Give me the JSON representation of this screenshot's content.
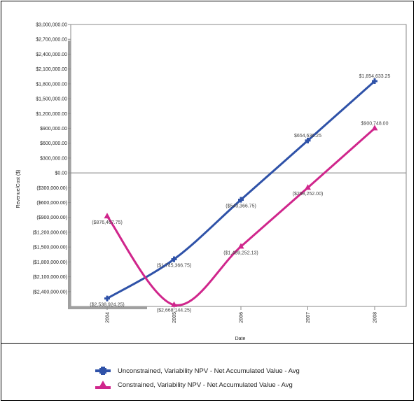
{
  "chart_data": {
    "type": "line",
    "title": "",
    "xlabel": "Date",
    "ylabel": "Revenue/Cost ($)",
    "categories": [
      "2004",
      "2005",
      "2006",
      "2007",
      "2008"
    ],
    "ylim": [
      -2700000,
      3000000
    ],
    "yticks": [
      3000000,
      2700000,
      2400000,
      2100000,
      1800000,
      1500000,
      1200000,
      900000,
      600000,
      300000,
      0,
      -300000,
      -600000,
      -900000,
      -1200000,
      -1500000,
      -1800000,
      -2100000,
      -2400000
    ],
    "ytick_labels": [
      "$3,000,000.00",
      "$2,700,000.00",
      "$2,400,000.00",
      "$2,100,000.00",
      "$1,800,000.00",
      "$1,500,000.00",
      "$1,200,000.00",
      "$900,000.00",
      "$600,000.00",
      "$300,000.00",
      "$0.00",
      "($300,000.00)",
      "($600,000.00)",
      "($900,000.00)",
      "($1,200,000.00)",
      "($1,500,000.00)",
      "($1,800,000.00)",
      "($2,100,000.00)",
      "($2,400,000.00)"
    ],
    "grid": false,
    "legend_position": "bottom",
    "series": [
      {
        "name": "Unconstrained, Variability NPV - Net Accumulated Value - Avg",
        "color": "#2f52a8",
        "marker": "cross",
        "values": [
          -2538924.25,
          -1745366.75,
          -543366.75,
          654636.25,
          1854633.25
        ],
        "labels": [
          "($2,538,924.25)",
          "($1,745,366.75)",
          "($543,366.75)",
          "$654,636.25",
          "$1,854,633.25"
        ]
      },
      {
        "name": "Constrained, Variability NPV - Net Accumulated Value - Avg",
        "color": "#d0268c",
        "marker": "triangle",
        "values": [
          -876467.75,
          -2668144.25,
          -1489252.13,
          -298252.0,
          900748.0
        ],
        "labels": [
          "($876,467.75)",
          "($2,668,144.25)",
          "($1,489,252.13)",
          "($298,252.00)",
          "$900,748.00"
        ]
      }
    ]
  }
}
